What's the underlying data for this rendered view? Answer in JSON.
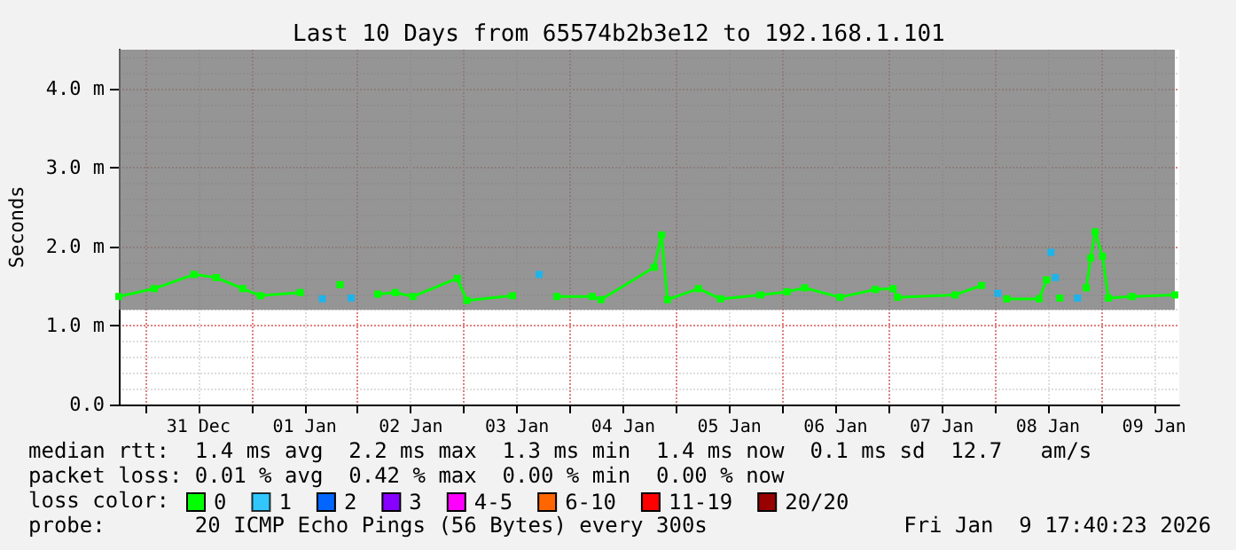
{
  "chart_data": {
    "type": "line",
    "title": "Last 10 Days from 65574b2b3e12 to 192.168.1.101",
    "ylabel": "Seconds",
    "legend_title": "loss color:",
    "legend": "bottom",
    "grid": true,
    "marker": "square",
    "line_style": "solid",
    "xlim": [
      "2025-12-30T18:00",
      "2026-01-09T17:40"
    ],
    "xticks": [
      {
        "value": "2025-12-31T00:00",
        "label": null
      },
      {
        "value": "2025-12-31T12:00",
        "label": "31 Dec"
      },
      {
        "value": "2026-01-01T00:00",
        "label": null
      },
      {
        "value": "2026-01-01T12:00",
        "label": "01 Jan"
      },
      {
        "value": "2026-01-02T00:00",
        "label": null
      },
      {
        "value": "2026-01-02T12:00",
        "label": "02 Jan"
      },
      {
        "value": "2026-01-03T00:00",
        "label": null
      },
      {
        "value": "2026-01-03T12:00",
        "label": "03 Jan"
      },
      {
        "value": "2026-01-04T00:00",
        "label": null
      },
      {
        "value": "2026-01-04T12:00",
        "label": "04 Jan"
      },
      {
        "value": "2026-01-05T00:00",
        "label": null
      },
      {
        "value": "2026-01-05T12:00",
        "label": "05 Jan"
      },
      {
        "value": "2026-01-06T00:00",
        "label": null
      },
      {
        "value": "2026-01-06T12:00",
        "label": "06 Jan"
      },
      {
        "value": "2026-01-07T00:00",
        "label": null
      },
      {
        "value": "2026-01-07T12:00",
        "label": "07 Jan"
      },
      {
        "value": "2026-01-08T00:00",
        "label": null
      },
      {
        "value": "2026-01-08T12:00",
        "label": "08 Jan"
      },
      {
        "value": "2026-01-09T00:00",
        "label": null
      },
      {
        "value": "2026-01-09T12:00",
        "label": "09 Jan"
      }
    ],
    "ylim": [
      0,
      4.5
    ],
    "yticks": [
      {
        "value": 0,
        "label": "0.0"
      },
      {
        "value": 1,
        "label": "1.0 m"
      },
      {
        "value": 2,
        "label": "2.0 m"
      },
      {
        "value": 3,
        "label": "3.0 m"
      },
      {
        "value": 4,
        "label": "4.0 m"
      }
    ],
    "x": [
      "2025-12-30T18:00",
      "2025-12-31T02:00",
      "2025-12-31T11:00",
      "2025-12-31T16:00",
      "2025-12-31T22:00",
      "2026-01-01T02:00",
      "2026-01-01T11:00",
      "2026-01-01T16:00",
      "2026-01-01T20:00",
      "2026-01-01T22:30",
      "2026-01-02T04:30",
      "2026-01-02T08:30",
      "2026-01-02T12:30",
      "2026-01-02T22:30",
      "2026-01-03T00:40",
      "2026-01-03T11:00",
      "2026-01-03T17:00",
      "2026-01-03T21:00",
      "2026-01-04T05:00",
      "2026-01-04T07:00",
      "2026-01-04T19:00",
      "2026-01-04T20:40",
      "2026-01-04T22:00",
      "2026-01-05T05:00",
      "2026-01-05T10:00",
      "2026-01-05T19:00",
      "2026-01-06T01:00",
      "2026-01-06T05:00",
      "2026-01-06T13:00",
      "2026-01-06T21:00",
      "2026-01-07T01:00",
      "2026-01-07T02:00",
      "2026-01-07T15:00",
      "2026-01-07T21:00",
      "2026-01-08T00:40",
      "2026-01-08T02:40",
      "2026-01-08T10:00",
      "2026-01-08T11:40",
      "2026-01-08T12:40",
      "2026-01-08T13:40",
      "2026-01-08T14:40",
      "2026-01-08T18:40",
      "2026-01-08T20:40",
      "2026-01-08T21:40",
      "2026-01-08T22:40",
      "2026-01-09T00:20",
      "2026-01-09T01:40",
      "2026-01-09T07:00",
      "2026-01-09T16:40"
    ],
    "series": [
      {
        "name": "0",
        "color": "#00ff00",
        "values": [
          1.37,
          1.47,
          1.65,
          1.61,
          1.47,
          1.38,
          1.42,
          null,
          1.52,
          null,
          1.4,
          1.42,
          1.37,
          1.6,
          1.32,
          1.38,
          null,
          1.37,
          1.37,
          1.33,
          1.74,
          2.15,
          1.33,
          1.47,
          1.34,
          1.39,
          1.43,
          1.48,
          1.36,
          1.46,
          1.47,
          1.36,
          1.39,
          1.51,
          null,
          1.34,
          1.34,
          1.58,
          null,
          null,
          1.35,
          null,
          1.48,
          1.86,
          2.19,
          1.88,
          1.35,
          1.37,
          1.39
        ],
        "lower": [
          1.2,
          1.2,
          1.2,
          1.2,
          1.2,
          1.2,
          1.2,
          1.2,
          1.2,
          1.2,
          1.2,
          1.2,
          1.2,
          1.2,
          1.2,
          1.2,
          1.2,
          1.2,
          1.2,
          1.2,
          1.2,
          1.2,
          1.2,
          1.2,
          1.2,
          1.2,
          1.2,
          1.2,
          1.2,
          1.2,
          1.2,
          1.2,
          1.2,
          1.2,
          1.2,
          1.2,
          1.2,
          1.2,
          1.2,
          1.2,
          1.2,
          1.2,
          1.2,
          1.2,
          1.2,
          1.2,
          1.2,
          1.2,
          1.2
        ],
        "upper": [
          4.5,
          4.5,
          4.5,
          4.5,
          4.5,
          4.5,
          4.5,
          4.5,
          4.5,
          4.5,
          4.5,
          4.5,
          4.5,
          4.5,
          4.5,
          4.5,
          4.5,
          4.5,
          4.5,
          4.5,
          4.5,
          4.5,
          4.5,
          4.5,
          4.5,
          4.5,
          4.5,
          4.5,
          4.5,
          4.5,
          4.5,
          4.5,
          4.5,
          4.5,
          4.5,
          4.5,
          4.5,
          4.5,
          4.5,
          4.5,
          4.5,
          4.5,
          4.5,
          4.5,
          4.5,
          4.5,
          4.5,
          4.5,
          4.5
        ]
      },
      {
        "name": "1",
        "color": "#00bbff",
        "type": "scatter",
        "x": [
          "2026-01-01T16:00",
          "2026-01-01T22:30",
          "2026-01-03T17:00",
          "2026-01-08T00:40",
          "2026-01-08T12:40",
          "2026-01-08T13:40",
          "2026-01-08T18:40"
        ],
        "values": [
          1.34,
          1.35,
          1.65,
          1.41,
          1.93,
          1.61,
          1.35
        ]
      },
      {
        "name": "2",
        "color": "#0066ff",
        "values": [
          null,
          null,
          null,
          null,
          null,
          null,
          null,
          null,
          null,
          null,
          null,
          null,
          null,
          null,
          null,
          null,
          null,
          null,
          null,
          null,
          null,
          null,
          null,
          null,
          null,
          null,
          null,
          null,
          null,
          null,
          null,
          null,
          null,
          null,
          null,
          null,
          null,
          null,
          null,
          null,
          null,
          null,
          null,
          null,
          null,
          null,
          null,
          null,
          null
        ]
      },
      {
        "name": "3",
        "color": "#8800ff",
        "values": [
          null,
          null,
          null,
          null,
          null,
          null,
          null,
          null,
          null,
          null,
          null,
          null,
          null,
          null,
          null,
          null,
          null,
          null,
          null,
          null,
          null,
          null,
          null,
          null,
          null,
          null,
          null,
          null,
          null,
          null,
          null,
          null,
          null,
          null,
          null,
          null,
          null,
          null,
          null,
          null,
          null,
          null,
          null,
          null,
          null,
          null,
          null,
          null,
          null
        ]
      },
      {
        "name": "4-5",
        "color": "#ff00ff",
        "values": [
          null,
          null,
          null,
          null,
          null,
          null,
          null,
          null,
          null,
          null,
          null,
          null,
          null,
          null,
          null,
          null,
          null,
          null,
          null,
          null,
          null,
          null,
          null,
          null,
          null,
          null,
          null,
          null,
          null,
          null,
          null,
          null,
          null,
          null,
          null,
          null,
          null,
          null,
          null,
          null,
          null,
          null,
          null,
          null,
          null,
          null,
          null,
          null,
          null
        ]
      },
      {
        "name": "6-10",
        "color": "#ff6600",
        "values": [
          null,
          null,
          null,
          null,
          null,
          null,
          null,
          null,
          null,
          null,
          null,
          null,
          null,
          null,
          null,
          null,
          null,
          null,
          null,
          null,
          null,
          null,
          null,
          null,
          null,
          null,
          null,
          null,
          null,
          null,
          null,
          null,
          null,
          null,
          null,
          null,
          null,
          null,
          null,
          null,
          null,
          null,
          null,
          null,
          null,
          null,
          null,
          null,
          null
        ]
      },
      {
        "name": "11-19",
        "color": "#ff0000",
        "values": [
          null,
          null,
          null,
          null,
          null,
          null,
          null,
          null,
          null,
          null,
          null,
          null,
          null,
          null,
          null,
          null,
          null,
          null,
          null,
          null,
          null,
          null,
          null,
          null,
          null,
          null,
          null,
          null,
          null,
          null,
          null,
          null,
          null,
          null,
          null,
          null,
          null,
          null,
          null,
          null,
          null,
          null,
          null,
          null,
          null,
          null,
          null,
          null,
          null
        ]
      },
      {
        "name": "20/20",
        "color": "#990000",
        "values": [
          null,
          null,
          null,
          null,
          null,
          null,
          null,
          null,
          null,
          null,
          null,
          null,
          null,
          null,
          null,
          null,
          null,
          null,
          null,
          null,
          null,
          null,
          null,
          null,
          null,
          null,
          null,
          null,
          null,
          null,
          null,
          null,
          null,
          null,
          null,
          null,
          null,
          null,
          null,
          null,
          null,
          null,
          null,
          null,
          null,
          null,
          null,
          null,
          null
        ]
      }
    ],
    "annotations": [
      "median rtt:  1.4 ms avg  2.2 ms max  1.3 ms min  1.4 ms now  0.1 ms sd  12.7   am/s",
      "packet loss: 0.01 % avg  0.42 % max  0.00 % min  0.00 % now",
      "probe:       20 ICMP Echo Pings (56 Bytes) every 300s",
      "Fri Jan  9 17:40:23 2026"
    ]
  }
}
